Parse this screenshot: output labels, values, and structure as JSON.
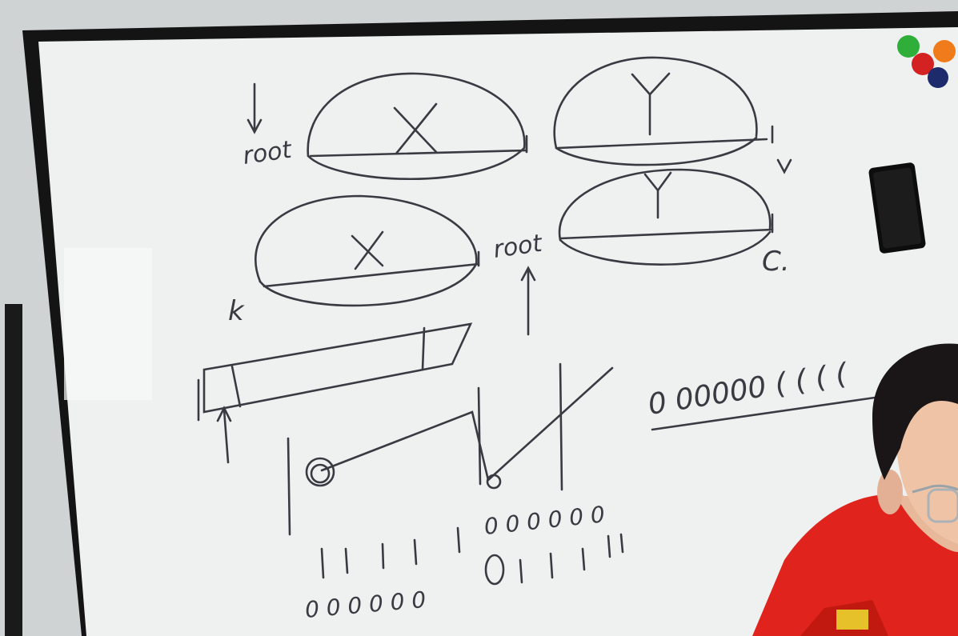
{
  "scene": {
    "description_free": true,
    "colors": {
      "wall": "#cfd3d4",
      "frame": "#141414",
      "board": "#eef1f0",
      "ink": "#3a3a42",
      "magnet_green": "#2fae3a",
      "magnet_orange": "#f07b1a",
      "magnet_red": "#d42222",
      "magnet_blue": "#1d2a6b",
      "shirt": "#e0231c"
    },
    "icons": [
      "whiteboard",
      "magnet",
      "eraser",
      "person"
    ]
  },
  "writing": {
    "root_top": "root",
    "root_mid": "root",
    "x_top": "X",
    "x_mid": "X",
    "y_top": "Y",
    "y_mid": "Y",
    "k": "k",
    "c": "C.",
    "row_top_right": "0 00000 ( ( ( (",
    "row_bottom_a": "0 0 0 0 0 0",
    "row_bottom_b": "0 0 0 0 0 0"
  }
}
